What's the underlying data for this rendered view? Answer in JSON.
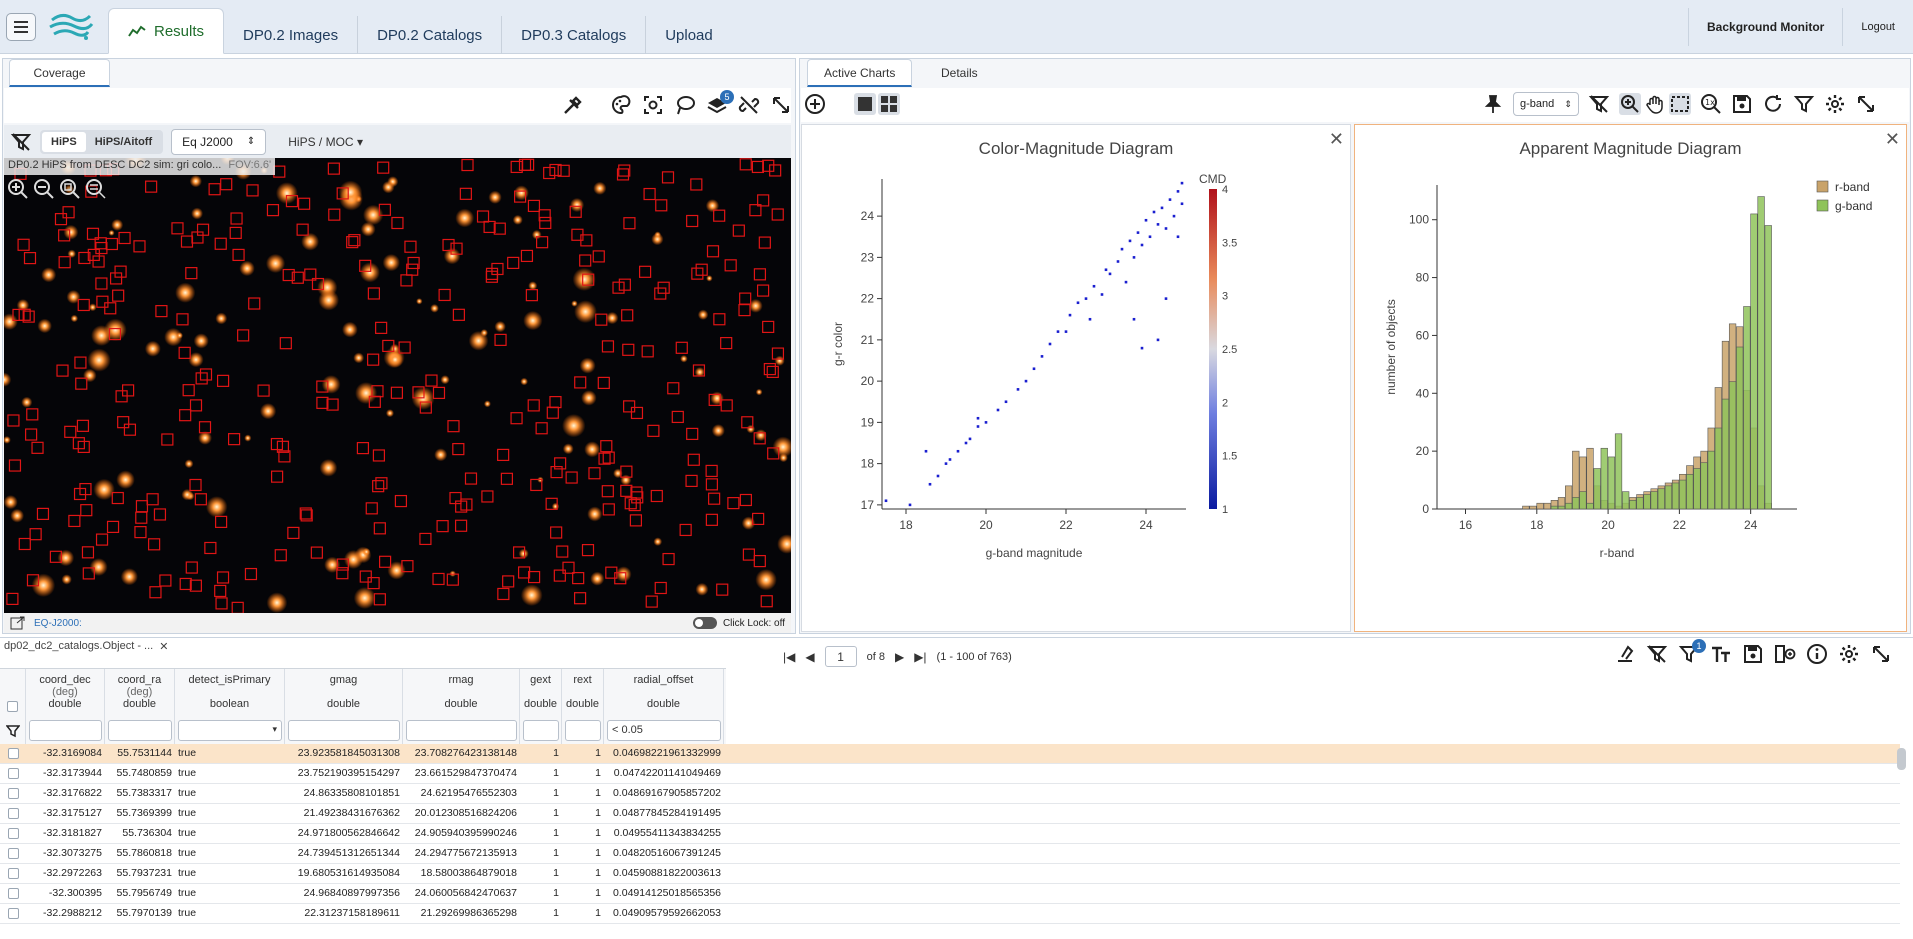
{
  "topbar": {
    "tabs": [
      "Results",
      "DP0.2 Images",
      "DP0.2 Catalogs",
      "DP0.3 Catalogs",
      "Upload"
    ],
    "right": [
      "Background Monitor",
      "Logout"
    ]
  },
  "coverage": {
    "tab": "Coverage",
    "proj_options": [
      "HiPS",
      "HiPS/Aitoff"
    ],
    "coord_sys": "Eq J2000",
    "hips_moc": "HiPS / MOC",
    "layer_count": "5",
    "overlay_label": "DP0.2 HiPS from DESC DC2 sim: gri colo...",
    "fov": "FOV:6.6'",
    "footer_coord": "EQ-J2000:",
    "click_lock": "Click Lock: off"
  },
  "charts": {
    "tabs": [
      "Active Charts",
      "Details"
    ],
    "band_select": "g-band",
    "cmd_title": "Color-Magnitude Diagram",
    "amd_title": "Apparent Magnitude Diagram"
  },
  "table": {
    "tab_title": "dp02_dc2_catalogs.Object - ...",
    "page": "1",
    "of_pages": "of 8",
    "range": "(1 - 100 of 763)",
    "filter_badge": "1",
    "columns": [
      {
        "name": "coord_dec",
        "unit": "(deg)",
        "type": "double"
      },
      {
        "name": "coord_ra",
        "unit": "(deg)",
        "type": "double"
      },
      {
        "name": "detect_isPrimary",
        "unit": "",
        "type": "boolean"
      },
      {
        "name": "gmag",
        "unit": "",
        "type": "double"
      },
      {
        "name": "rmag",
        "unit": "",
        "type": "double"
      },
      {
        "name": "gext",
        "unit": "",
        "type": "double"
      },
      {
        "name": "rext",
        "unit": "",
        "type": "double"
      },
      {
        "name": "radial_offset",
        "unit": "",
        "type": "double"
      }
    ],
    "filter_radial": "< 0.05",
    "rows": [
      [
        "-32.3169084",
        "55.7531144",
        "true",
        "23.923581845031308",
        "23.708276423138148",
        "1",
        "1",
        "0.04698221961332999"
      ],
      [
        "-32.3173944",
        "55.7480859",
        "true",
        "23.752190395154297",
        "23.661529847370474",
        "1",
        "1",
        "0.04742201141049469"
      ],
      [
        "-32.3176822",
        "55.7383317",
        "true",
        "24.86335808101851",
        "24.62195476552303",
        "1",
        "1",
        "0.04869167905857202"
      ],
      [
        "-32.3175127",
        "55.7369399",
        "true",
        "21.49238431676362",
        "20.012308516824206",
        "1",
        "1",
        "0.04877845284191495"
      ],
      [
        "-32.3181827",
        "55.736304",
        "true",
        "24.971800562846642",
        "24.905940395990246",
        "1",
        "1",
        "0.04955411343834255"
      ],
      [
        "-32.3073275",
        "55.7860818",
        "true",
        "24.739451312651344",
        "24.294775672135913",
        "1",
        "1",
        "0.04820516067391245"
      ],
      [
        "-32.2972263",
        "55.7937231",
        "true",
        "19.680531614935084",
        "18.58003864879018",
        "1",
        "1",
        "0.04590881822003613"
      ],
      [
        "-32.300395",
        "55.7956749",
        "true",
        "24.96840897997356",
        "24.060056842470637",
        "1",
        "1",
        "0.04914125018565356"
      ],
      [
        "-32.2988212",
        "55.7970139",
        "true",
        "22.31237158189611",
        "21.29269986365298",
        "1",
        "1",
        "0.04909579592662053"
      ]
    ]
  },
  "chart_data": [
    {
      "type": "heatmap",
      "title": "Color-Magnitude Diagram",
      "xlabel": "g-band magnitude",
      "ylabel": "g-r color",
      "xlim": [
        17.4,
        25.0
      ],
      "ylim": [
        16.9,
        24.9
      ],
      "colorbar_title": "CMD",
      "colorbar_range": [
        1,
        4
      ],
      "colorbar_ticks": [
        "1",
        "1.5",
        "2",
        "2.5",
        "3",
        "3.5",
        "4"
      ],
      "xticks": [
        "18",
        "20",
        "22",
        "24"
      ],
      "yticks": [
        "17",
        "18",
        "19",
        "20",
        "21",
        "22",
        "23",
        "24"
      ],
      "points": [
        [
          17.5,
          17.1
        ],
        [
          18.1,
          17.0
        ],
        [
          18.5,
          18.3
        ],
        [
          18.6,
          17.5
        ],
        [
          18.8,
          17.7
        ],
        [
          19.0,
          18.0
        ],
        [
          19.1,
          18.1
        ],
        [
          19.3,
          18.3
        ],
        [
          19.5,
          18.5
        ],
        [
          19.6,
          18.6
        ],
        [
          19.8,
          18.9
        ],
        [
          19.8,
          19.1
        ],
        [
          20.0,
          19.0
        ],
        [
          20.3,
          19.3
        ],
        [
          20.5,
          19.5
        ],
        [
          20.8,
          19.8
        ],
        [
          21.0,
          20.0
        ],
        [
          21.2,
          20.3
        ],
        [
          21.4,
          20.6
        ],
        [
          21.6,
          20.9
        ],
        [
          21.8,
          21.2
        ],
        [
          22.0,
          21.2
        ],
        [
          22.1,
          21.6
        ],
        [
          22.3,
          21.9
        ],
        [
          22.5,
          22.0
        ],
        [
          22.6,
          21.5
        ],
        [
          22.7,
          22.3
        ],
        [
          22.9,
          22.1
        ],
        [
          23.0,
          22.7
        ],
        [
          23.1,
          22.6
        ],
        [
          23.3,
          22.9
        ],
        [
          23.4,
          23.2
        ],
        [
          23.5,
          22.4
        ],
        [
          23.6,
          23.4
        ],
        [
          23.7,
          23.0
        ],
        [
          23.8,
          23.6
        ],
        [
          23.9,
          23.3
        ],
        [
          24.0,
          23.9
        ],
        [
          24.1,
          23.5
        ],
        [
          24.2,
          24.1
        ],
        [
          24.3,
          23.8
        ],
        [
          24.4,
          24.2
        ],
        [
          24.5,
          23.7
        ],
        [
          24.6,
          24.4
        ],
        [
          24.7,
          24.0
        ],
        [
          24.8,
          24.6
        ],
        [
          24.9,
          24.3
        ],
        [
          24.3,
          21.0
        ],
        [
          23.9,
          20.8
        ],
        [
          24.5,
          22.0
        ],
        [
          23.7,
          21.5
        ],
        [
          24.8,
          23.5
        ],
        [
          24.9,
          24.8
        ]
      ]
    },
    {
      "type": "bar",
      "title": "Apparent Magnitude Diagram",
      "xlabel": "r-band",
      "ylabel": "number of objects",
      "xlim": [
        15.2,
        25.3
      ],
      "ylim": [
        0,
        112
      ],
      "xticks": [
        "16",
        "18",
        "20",
        "22",
        "24"
      ],
      "yticks": [
        "0",
        "20",
        "40",
        "60",
        "80",
        "100"
      ],
      "bin_start": 16.0,
      "bin_width": 0.2,
      "series": [
        {
          "name": "r-band",
          "color": "#c9a36a",
          "values": [
            0,
            0,
            0,
            0,
            0,
            0,
            0,
            0,
            1,
            1,
            2,
            2,
            3,
            4,
            8,
            20,
            18,
            21,
            8,
            3,
            2,
            1,
            2,
            4,
            5,
            6,
            7,
            8,
            9,
            10,
            12,
            15,
            18,
            20,
            28,
            42,
            58,
            64,
            63,
            41,
            28,
            8,
            2
          ]
        },
        {
          "name": "g-band",
          "color": "#8fc35a",
          "values": [
            0,
            0,
            0,
            0,
            0,
            0,
            0,
            0,
            0,
            0,
            0,
            0,
            1,
            1,
            2,
            4,
            6,
            2,
            14,
            21,
            18,
            26,
            6,
            3,
            4,
            5,
            6,
            7,
            8,
            9,
            10,
            12,
            14,
            16,
            20,
            28,
            38,
            44,
            56,
            70,
            102,
            108,
            98
          ]
        }
      ]
    }
  ]
}
